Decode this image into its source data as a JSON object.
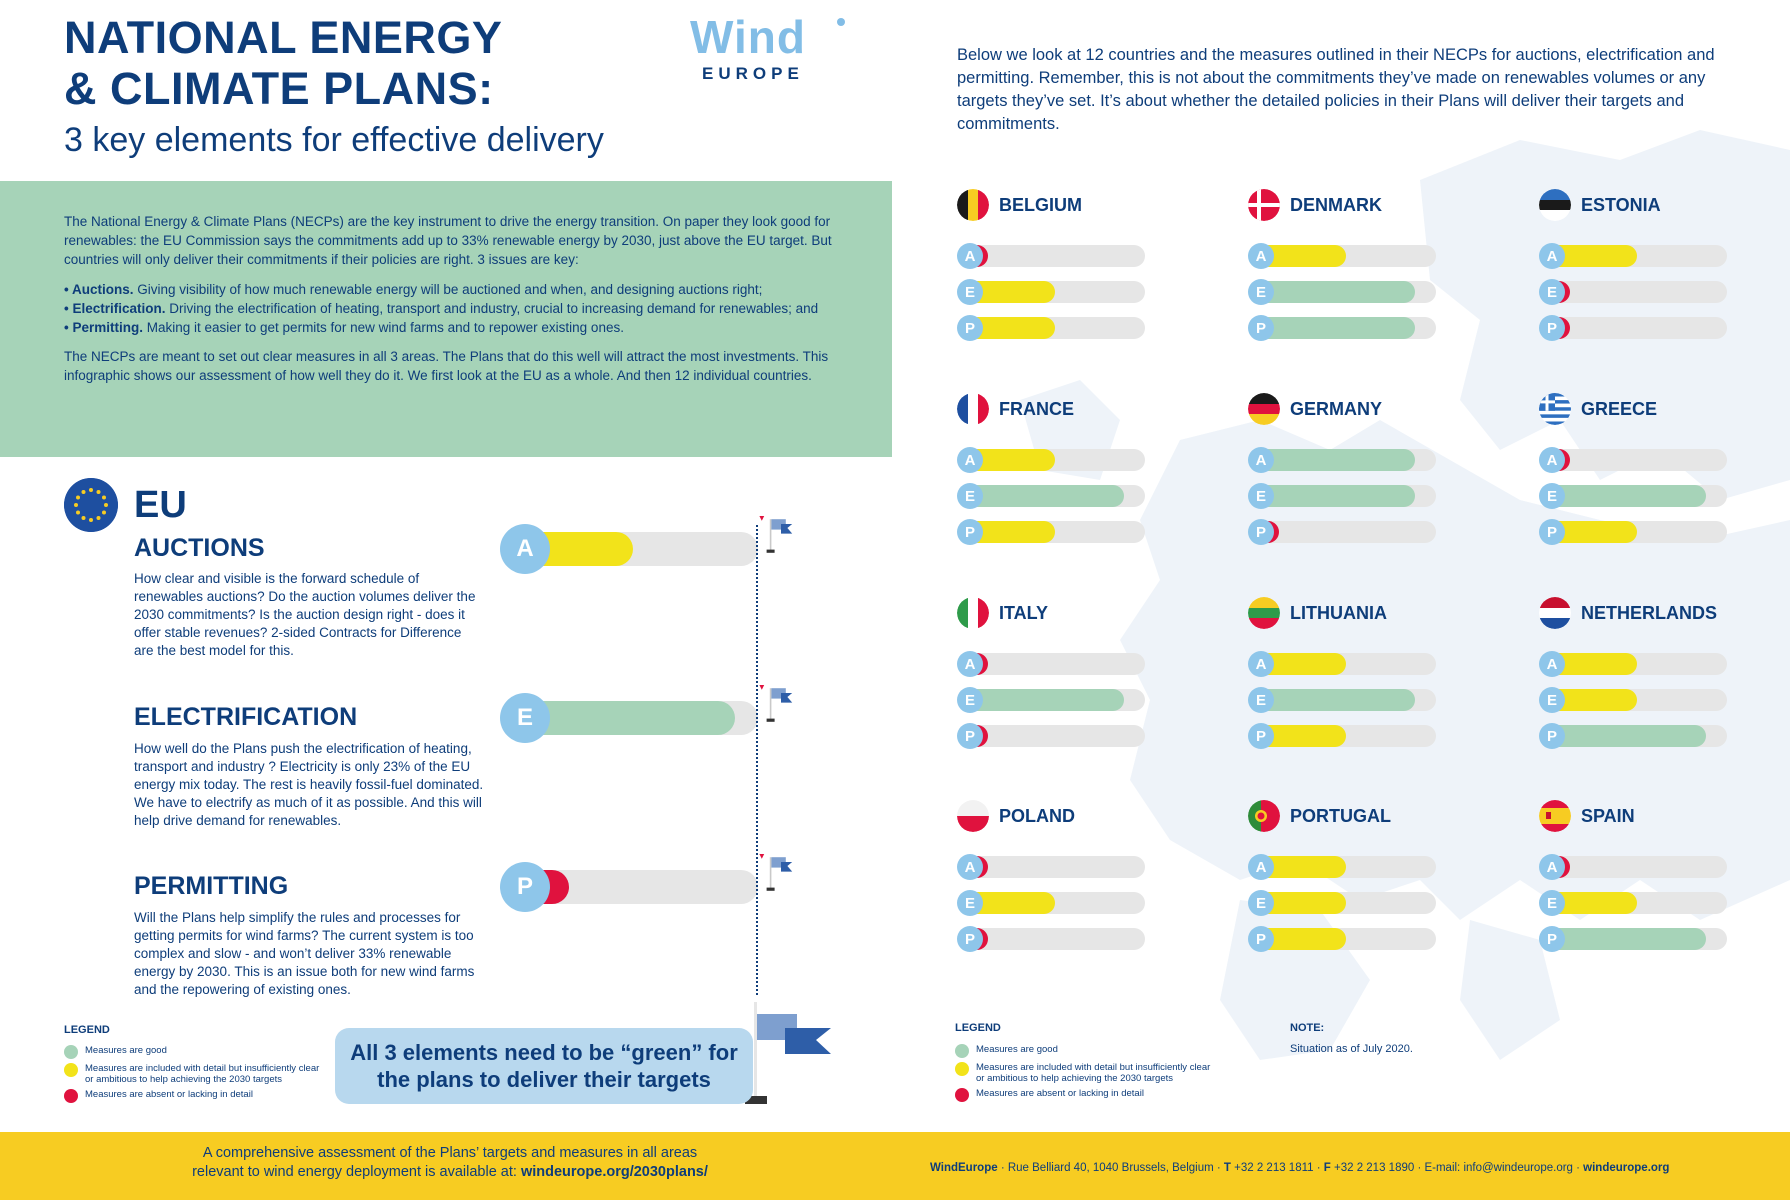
{
  "header": {
    "title_line1": "NATIONAL ENERGY",
    "title_line2": "& CLIMATE PLANS:",
    "subtitle": "3 key elements for effective delivery",
    "logo_wind": "Wind",
    "logo_europe": "EUROPE"
  },
  "intro": "Below we look at 12 countries and the measures outlined in their NECPs for auctions, electrification and permitting. Remember, this is not about the commitments they’ve made on renewables volumes or any targets they’ve set. It’s about whether the detailed policies in their Plans will deliver their targets and commitments.",
  "green_box": {
    "para1": "The National Energy & Climate Plans (NECPs) are the key instrument to drive the energy transition. On paper they look good for renewables: the EU Commission says the commitments add up to 33% renewable energy by 2030, just above the EU target. But countries will only deliver their commitments if their policies are right. 3 issues are key:",
    "bullets": [
      {
        "bold": "• Auctions.",
        "text": " Giving visibility of how much renewable energy will be auctioned and when, and designing auctions right;"
      },
      {
        "bold": "• Electrification.",
        "text": " Driving the electrification of heating, transport and industry, crucial to increasing demand for renewables; and"
      },
      {
        "bold": "• Permitting.",
        "text": " Making it easier to get permits for new wind farms and to repower existing ones."
      }
    ],
    "para2": "The NECPs are meant to set out clear measures in all 3 areas. The Plans that do this well will attract the most investments. This infographic shows our assessment of how well they do it. We first look at the EU as a whole. And then 12 individual countries."
  },
  "eu": {
    "title": "EU",
    "sections": [
      {
        "letter": "A",
        "heading": "AUCTIONS",
        "status": "yellow",
        "level": 0.45,
        "text": "How clear and visible is the forward schedule of renewables auctions? Do the auction volumes deliver the 2030 commitments? Is the auction design right - does it offer stable revenues? 2-sided Contracts for Difference are the best model for this."
      },
      {
        "letter": "E",
        "heading": "ELECTRIFICATION",
        "status": "green",
        "level": 0.9,
        "text": "How well do the Plans push the electrification of heating, transport and industry ? Electricity is only 23% of the EU energy mix today. The rest is heavily fossil-fuel dominated. We have to electrify as much of it as possible. And this will help drive demand for renewables."
      },
      {
        "letter": "P",
        "heading": "PERMITTING",
        "status": "red",
        "level": 0.17,
        "text": "Will the Plans help simplify the rules and processes for getting permits for wind farms? The current system is too complex and slow - and won’t deliver 33% renewable energy by 2030. This is an issue both for new wind farms and the repowering of existing ones."
      }
    ],
    "callout": "All 3 elements need to be “green” for the plans to deliver their targets"
  },
  "legend": {
    "title": "LEGEND",
    "items": [
      {
        "color": "#a6d3b8",
        "label": "Measures are good"
      },
      {
        "color": "#f2e31a",
        "label": "Measures are included with detail but insufficiently clear or ambitious to help achieving the 2030 targets"
      },
      {
        "color": "#e0123e",
        "label": "Measures are absent or lacking in detail"
      }
    ]
  },
  "note": {
    "title": "NOTE:",
    "text": "Situation as of July 2020."
  },
  "colors": {
    "green": "#a6d3b8",
    "yellow": "#f2e31a",
    "red": "#e0123e",
    "track": "#e6e6e6",
    "circle": "#8ec6ea"
  },
  "countries": [
    {
      "name": "BELGIUM",
      "flag": "belgium-flag-icon",
      "ratings": [
        "red",
        "yellow",
        "yellow"
      ]
    },
    {
      "name": "DENMARK",
      "flag": "denmark-flag-icon",
      "ratings": [
        "yellow",
        "green",
        "green"
      ]
    },
    {
      "name": "ESTONIA",
      "flag": "estonia-flag-icon",
      "ratings": [
        "yellow",
        "red",
        "red"
      ]
    },
    {
      "name": "FRANCE",
      "flag": "france-flag-icon",
      "ratings": [
        "yellow",
        "green",
        "yellow"
      ]
    },
    {
      "name": "GERMANY",
      "flag": "germany-flag-icon",
      "ratings": [
        "green",
        "green",
        "red"
      ]
    },
    {
      "name": "GREECE",
      "flag": "greece-flag-icon",
      "ratings": [
        "red",
        "green",
        "yellow"
      ]
    },
    {
      "name": "ITALY",
      "flag": "italy-flag-icon",
      "ratings": [
        "red",
        "green",
        "red"
      ]
    },
    {
      "name": "LITHUANIA",
      "flag": "lithuania-flag-icon",
      "ratings": [
        "yellow",
        "green",
        "yellow"
      ]
    },
    {
      "name": "NETHERLANDS",
      "flag": "netherlands-flag-icon",
      "ratings": [
        "yellow",
        "yellow",
        "green"
      ]
    },
    {
      "name": "POLAND",
      "flag": "poland-flag-icon",
      "ratings": [
        "red",
        "yellow",
        "red"
      ]
    },
    {
      "name": "PORTUGAL",
      "flag": "portugal-flag-icon",
      "ratings": [
        "yellow",
        "yellow",
        "yellow"
      ]
    },
    {
      "name": "SPAIN",
      "flag": "spain-flag-icon",
      "ratings": [
        "red",
        "yellow",
        "green"
      ]
    }
  ],
  "bar_letters": [
    "A",
    "E",
    "P"
  ],
  "footer": {
    "left_line1": "A comprehensive assessment of the Plans’ targets and measures in all areas",
    "left_line2_prefix": "relevant to wind energy deployment is available at: ",
    "left_link": "windeurope.org/2030plans/",
    "right_org": "WindEurope",
    "right_address": " · Rue Belliard 40, 1040 Brussels, Belgium · ",
    "right_t_label": "T",
    "right_t": " +32 2 213 1811 · ",
    "right_f_label": "F",
    "right_f": " +32 2 213 1890 · E-mail: info@windeurope.org · ",
    "right_site": "windeurope.org"
  }
}
